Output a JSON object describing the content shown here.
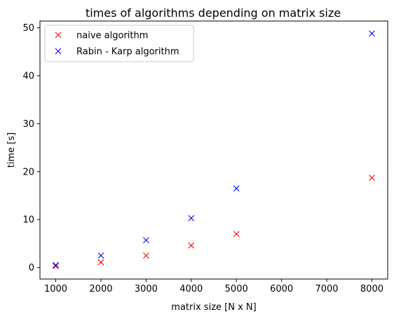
{
  "chart_data": {
    "type": "scatter",
    "title": "times of algorithms depending on matrix size",
    "xlabel": "matrix size [N x N]",
    "ylabel": "time [s]",
    "xlim": [
      650,
      8350
    ],
    "ylim": [
      -2.4,
      51.4
    ],
    "xticks": [
      1000,
      2000,
      3000,
      4000,
      5000,
      6000,
      7000,
      8000
    ],
    "yticks": [
      0,
      10,
      20,
      30,
      40,
      50
    ],
    "marker": "x",
    "legend_position": "top-left",
    "series": [
      {
        "name": "naive algorithm",
        "color": "#ff0000",
        "x": [
          1000,
          2000,
          3000,
          4000,
          5000,
          8000
        ],
        "y": [
          0.3,
          1.1,
          2.5,
          4.6,
          7.0,
          18.7
        ]
      },
      {
        "name": "Rabin - Karp algorithm",
        "color": "#0000ff",
        "x": [
          1000,
          2000,
          3000,
          4000,
          5000,
          8000
        ],
        "y": [
          0.5,
          2.5,
          5.7,
          10.3,
          16.5,
          48.8
        ]
      }
    ]
  }
}
